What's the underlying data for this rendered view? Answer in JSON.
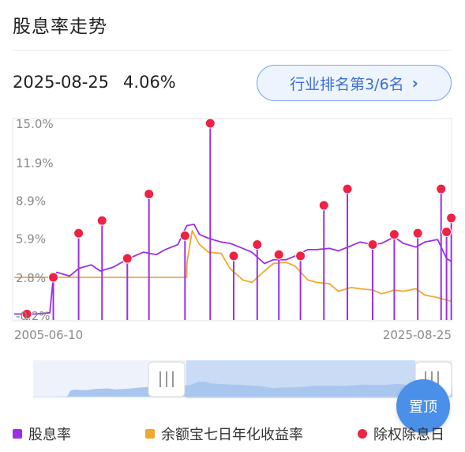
{
  "header": {
    "title": "股息率走势"
  },
  "summary": {
    "date": "2025-08-25",
    "value": "4.06%"
  },
  "rank_button": {
    "label": "行业排名第3/6名",
    "icon": "chevron-right-icon"
  },
  "scroll_top": {
    "label": "置顶"
  },
  "legend": [
    {
      "label": "股息率",
      "color": "#9b30e8",
      "shape": "square"
    },
    {
      "label": "余额宝七日年化收益率",
      "color": "#f0a830",
      "shape": "square"
    },
    {
      "label": "除权除息日",
      "color": "#ee2244",
      "shape": "dot"
    }
  ],
  "chart_data": {
    "type": "line",
    "x_start": "2005-06-10",
    "x_end": "2025-08-25",
    "x_tick_labels": [
      "2005-06-10",
      "2025-08-25"
    ],
    "y_tick_labels": [
      "15.0%",
      "11.9%",
      "8.9%",
      "5.9%",
      "2.8%",
      "-0.2%"
    ],
    "y_ticks": [
      15.0,
      11.9,
      8.9,
      5.9,
      2.8,
      -0.2
    ],
    "ylim": [
      -0.2,
      15.0
    ],
    "grid": false,
    "legend_position": "bottom",
    "series": [
      {
        "name": "股息率",
        "color": "#9b30e8",
        "points": [
          [
            "2005-06-10",
            -0.1
          ],
          [
            "2006-06-01",
            -0.1
          ],
          [
            "2007-02-01",
            0.0
          ],
          [
            "2007-04-01",
            2.8
          ],
          [
            "2007-06-01",
            3.2
          ],
          [
            "2008-01-01",
            2.9
          ],
          [
            "2008-06-01",
            3.5
          ],
          [
            "2009-01-01",
            3.8
          ],
          [
            "2009-06-01",
            3.3
          ],
          [
            "2010-01-01",
            3.6
          ],
          [
            "2010-06-01",
            4.0
          ],
          [
            "2011-01-01",
            4.5
          ],
          [
            "2011-06-01",
            4.8
          ],
          [
            "2012-01-01",
            4.6
          ],
          [
            "2012-06-01",
            5.0
          ],
          [
            "2013-01-01",
            5.4
          ],
          [
            "2013-06-01",
            6.9
          ],
          [
            "2013-10-01",
            7.0
          ],
          [
            "2014-01-01",
            6.2
          ],
          [
            "2014-06-01",
            5.9
          ],
          [
            "2015-01-01",
            5.6
          ],
          [
            "2015-06-01",
            5.5
          ],
          [
            "2016-01-01",
            5.1
          ],
          [
            "2016-06-01",
            4.8
          ],
          [
            "2017-01-01",
            3.9
          ],
          [
            "2017-06-01",
            4.2
          ],
          [
            "2018-01-01",
            4.2
          ],
          [
            "2018-06-01",
            4.5
          ],
          [
            "2019-01-01",
            5.0
          ],
          [
            "2019-06-01",
            5.0
          ],
          [
            "2020-01-01",
            5.1
          ],
          [
            "2020-06-01",
            4.9
          ],
          [
            "2021-01-01",
            5.3
          ],
          [
            "2021-06-01",
            5.6
          ],
          [
            "2022-01-01",
            5.4
          ],
          [
            "2022-06-01",
            5.5
          ],
          [
            "2023-01-01",
            6.0
          ],
          [
            "2023-06-01",
            5.5
          ],
          [
            "2024-01-01",
            5.2
          ],
          [
            "2024-06-01",
            5.6
          ],
          [
            "2025-01-01",
            5.8
          ],
          [
            "2025-06-01",
            4.3
          ],
          [
            "2025-08-25",
            4.06
          ]
        ]
      },
      {
        "name": "余额宝七日年化收益率",
        "color": "#f0a830",
        "points": [
          [
            "2005-06-10",
            2.8
          ],
          [
            "2013-05-29",
            2.8
          ],
          [
            "2013-06-05",
            4.0
          ],
          [
            "2013-09-01",
            6.5
          ],
          [
            "2014-01-01",
            5.4
          ],
          [
            "2014-06-01",
            4.8
          ],
          [
            "2015-01-01",
            4.7
          ],
          [
            "2015-06-01",
            3.5
          ],
          [
            "2016-01-01",
            2.6
          ],
          [
            "2016-06-01",
            2.4
          ],
          [
            "2017-01-01",
            3.3
          ],
          [
            "2017-06-01",
            3.9
          ],
          [
            "2018-01-01",
            4.0
          ],
          [
            "2018-06-01",
            3.7
          ],
          [
            "2019-01-01",
            2.6
          ],
          [
            "2019-06-01",
            2.4
          ],
          [
            "2020-01-01",
            2.3
          ],
          [
            "2020-06-01",
            1.7
          ],
          [
            "2021-01-01",
            2.0
          ],
          [
            "2021-06-01",
            1.9
          ],
          [
            "2022-01-01",
            1.8
          ],
          [
            "2022-06-01",
            1.5
          ],
          [
            "2023-01-01",
            1.8
          ],
          [
            "2023-06-01",
            1.7
          ],
          [
            "2024-01-01",
            1.9
          ],
          [
            "2024-06-01",
            1.4
          ],
          [
            "2025-01-01",
            1.2
          ],
          [
            "2025-06-01",
            1.0
          ],
          [
            "2025-08-25",
            0.9
          ]
        ]
      }
    ],
    "ex_dividend_events": [
      {
        "date": "2006-01-10",
        "value": -0.1
      },
      {
        "date": "2007-04-01",
        "value": 2.8
      },
      {
        "date": "2008-06-01",
        "value": 6.3
      },
      {
        "date": "2009-07-01",
        "value": 7.3
      },
      {
        "date": "2010-09-01",
        "value": 4.3
      },
      {
        "date": "2011-09-01",
        "value": 9.4
      },
      {
        "date": "2013-05-01",
        "value": 6.1
      },
      {
        "date": "2014-07-01",
        "value": 15.0
      },
      {
        "date": "2015-08-01",
        "value": 4.5
      },
      {
        "date": "2016-09-01",
        "value": 5.4
      },
      {
        "date": "2017-09-01",
        "value": 4.6
      },
      {
        "date": "2018-09-01",
        "value": 4.5
      },
      {
        "date": "2019-10-01",
        "value": 8.5
      },
      {
        "date": "2020-11-01",
        "value": 9.8
      },
      {
        "date": "2022-01-01",
        "value": 5.4
      },
      {
        "date": "2023-01-01",
        "value": 6.2
      },
      {
        "date": "2024-02-01",
        "value": 6.3
      },
      {
        "date": "2025-03-01",
        "value": 9.8
      },
      {
        "date": "2025-06-01",
        "value": 6.4
      },
      {
        "date": "2025-08-20",
        "value": 7.5
      }
    ]
  }
}
